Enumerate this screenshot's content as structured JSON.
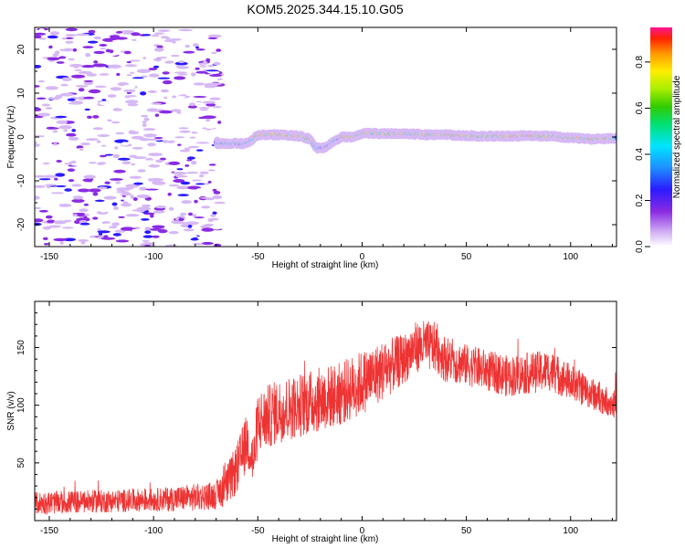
{
  "title": "KOM5.2025.344.15.10.G05",
  "chart_data": [
    {
      "type": "heatmap",
      "title": "KOM5.2025.344.15.10.G05",
      "xlabel": "Height of straight line (km)",
      "ylabel": "Frequency (Hz)",
      "xlim": [
        -157,
        122
      ],
      "ylim": [
        -25,
        25
      ],
      "x_ticks": [
        -150,
        -100,
        -50,
        0,
        50,
        100
      ],
      "x_tick_labels": [
        "-150",
        "-100",
        "-50",
        "0",
        "50",
        "100"
      ],
      "y_ticks": [
        -20,
        -10,
        0,
        10,
        20
      ],
      "y_tick_labels": [
        "-20",
        "-10",
        "0",
        "10",
        "20"
      ],
      "noise_region_x": [
        -157,
        -68
      ],
      "noise_amplitude": [
        0.05,
        0.3
      ],
      "signal_ridge": {
        "x": [
          -70,
          -65,
          -60,
          -55,
          -50,
          -40,
          -30,
          -25,
          -22,
          -18,
          -15,
          -10,
          -5,
          0,
          10,
          20,
          30,
          40,
          50,
          60,
          70,
          80,
          90,
          100,
          110,
          122
        ],
        "freq": [
          -1.5,
          -1.5,
          -1.5,
          -1.5,
          0.5,
          0.5,
          0.2,
          -0.5,
          -2.5,
          -2.5,
          -1.5,
          0,
          0,
          0.8,
          0.8,
          0.8,
          0.5,
          0.5,
          0.3,
          0.2,
          0.2,
          0.3,
          0.2,
          -0.2,
          -0.5,
          -0.3
        ],
        "peak_amplitude": 0.95
      },
      "colorbar": {
        "label": "Normalized spectral amplitude",
        "range": [
          0,
          0.95
        ],
        "ticks": [
          0,
          0.2,
          0.4,
          0.6,
          0.8
        ],
        "tick_labels": [
          "0.0",
          "0.2",
          "0.4",
          "0.6",
          "0.8"
        ]
      }
    },
    {
      "type": "line",
      "xlabel": "Height of straight line (km)",
      "ylabel": "SNR (v/v)",
      "xlim": [
        -157,
        122
      ],
      "ylim": [
        0,
        190
      ],
      "x_ticks": [
        -150,
        -100,
        -50,
        0,
        50,
        100
      ],
      "x_tick_labels": [
        "-150",
        "-100",
        "-50",
        "0",
        "50",
        "100"
      ],
      "y_ticks": [
        50,
        100,
        150
      ],
      "y_tick_labels": [
        "50",
        "100",
        "150"
      ],
      "color": "#ee3333",
      "series": [
        {
          "name": "SNR",
          "x": [
            -157,
            -140,
            -120,
            -100,
            -80,
            -70,
            -65,
            -60,
            -55,
            -52,
            -50,
            -40,
            -30,
            -20,
            -10,
            0,
            10,
            20,
            25,
            30,
            35,
            40,
            50,
            60,
            70,
            80,
            90,
            100,
            110,
            122
          ],
          "mean": [
            15,
            16,
            17,
            18,
            20,
            22,
            30,
            45,
            70,
            50,
            85,
            95,
            100,
            105,
            110,
            120,
            130,
            140,
            150,
            152,
            150,
            140,
            135,
            130,
            125,
            128,
            130,
            120,
            110,
            100
          ],
          "spread": [
            10,
            10,
            10,
            10,
            12,
            12,
            18,
            22,
            25,
            25,
            28,
            28,
            28,
            28,
            28,
            28,
            26,
            22,
            22,
            22,
            22,
            20,
            18,
            18,
            18,
            18,
            18,
            16,
            14,
            12
          ]
        }
      ]
    }
  ]
}
